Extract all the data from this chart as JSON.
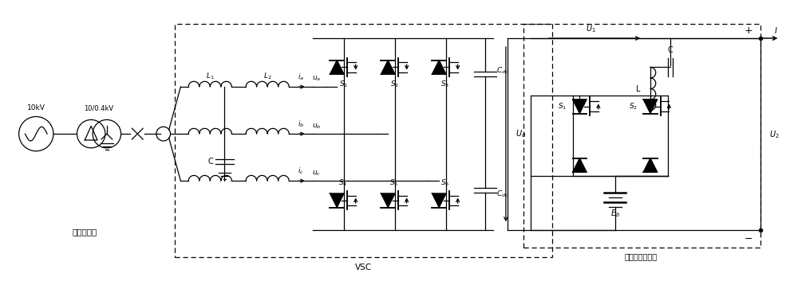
{
  "bg_color": "#ffffff",
  "line_color": "#000000",
  "text_color": "#000000",
  "figsize": [
    10.0,
    3.53
  ],
  "dpi": 100,
  "labels": {
    "ac_grid": "交流配电网",
    "vsc": "VSC",
    "fcc": "故障电流控制器",
    "v10kv": "10kV",
    "v04kv": "10/0.4kV"
  }
}
